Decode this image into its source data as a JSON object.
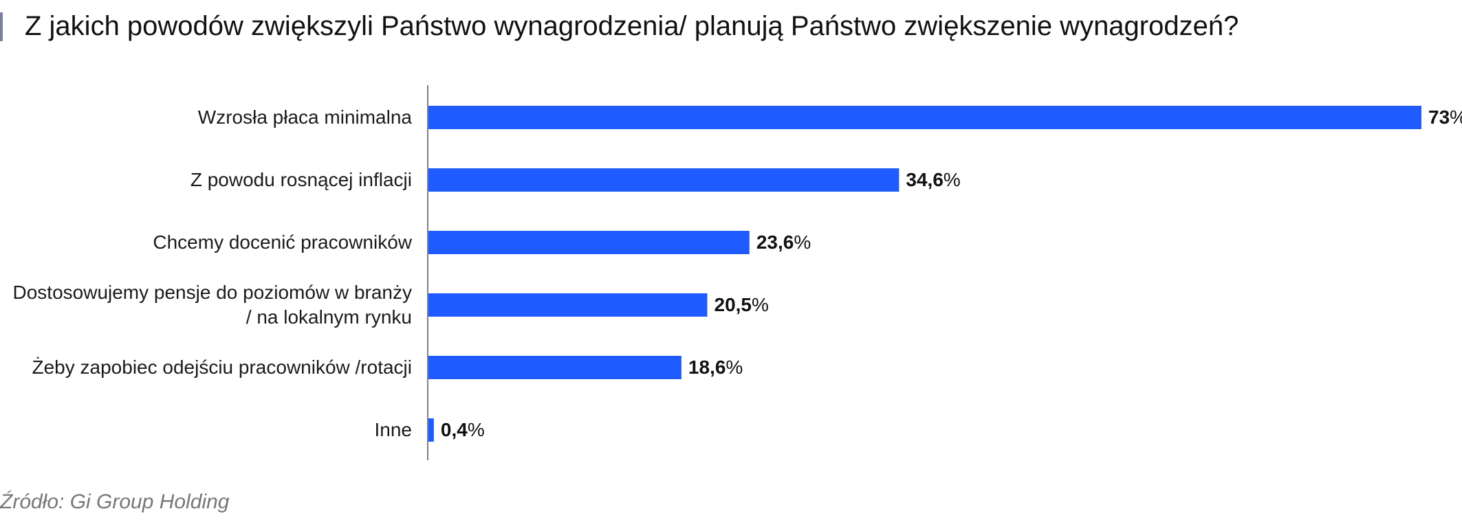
{
  "title": "Z jakich powodów zwiększyli Państwo wynagrodzenia/ planują Państwo zwiększenie wynagrodzeń?",
  "source": "Źródło: Gi Group Holding",
  "chart_data": {
    "type": "bar",
    "orientation": "horizontal",
    "categories": [
      [
        "Wzrosła płaca minimalna"
      ],
      [
        "Z powodu rosnącej inflacji"
      ],
      [
        "Chcemy docenić pracowników"
      ],
      [
        "Dostosowujemy pensje do poziomów w branży",
        "/ na lokalnym rynku"
      ],
      [
        "Żeby zapobiec odejściu pracowników /rotacji"
      ],
      [
        "Inne"
      ]
    ],
    "values": [
      73,
      34.6,
      23.6,
      20.5,
      18.6,
      0.4
    ],
    "value_labels": [
      "73",
      "34,6",
      "23,6",
      "20,5",
      "18,6",
      "0,4"
    ],
    "value_unit": "%",
    "xlim": [
      0,
      73
    ],
    "grid": false,
    "bar_color": "#1f5bff",
    "axis_color": "#555555"
  }
}
